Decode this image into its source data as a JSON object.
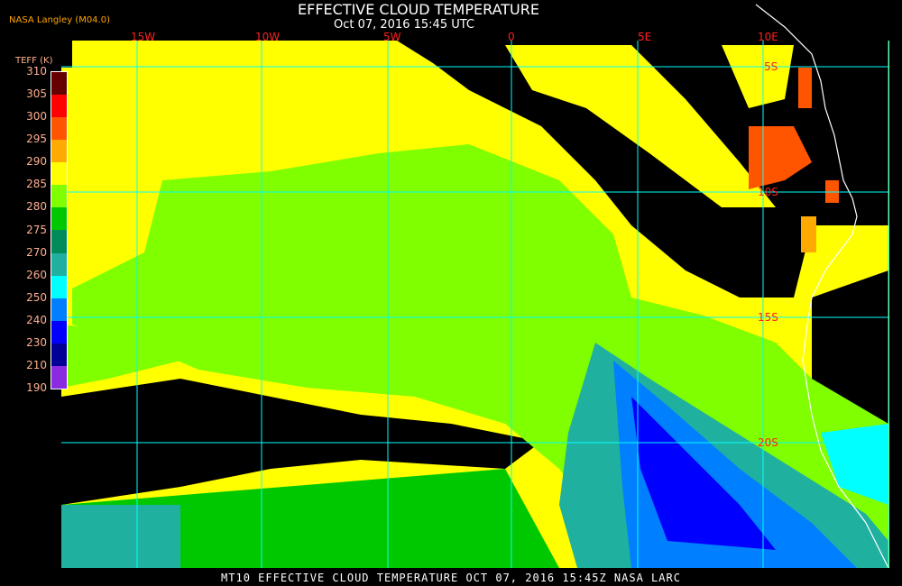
{
  "header": {
    "title": "EFFECTIVE CLOUD TEMPERATURE",
    "subtitle": "Oct 07, 2016 15:45 UTC",
    "credit": "NASA Langley (M04.0)"
  },
  "legend": {
    "title": "TEFF (K)",
    "labels": [
      "310",
      "305",
      "300",
      "295",
      "290",
      "285",
      "280",
      "275",
      "270",
      "260",
      "250",
      "240",
      "230",
      "210",
      "190"
    ],
    "colors": [
      "#660000",
      "#ff0000",
      "#ff5500",
      "#ffaa00",
      "#ffff00",
      "#80ff00",
      "#00c800",
      "#008c5a",
      "#20b0a0",
      "#00ffff",
      "#0080ff",
      "#0000ff",
      "#000096",
      "#8a2be2"
    ]
  },
  "grid": {
    "longitudes": [
      "15W",
      "10W",
      "5W",
      "0",
      "5E",
      "10E"
    ],
    "latitudes": [
      "5S",
      "10S",
      "15S",
      "20S"
    ],
    "line_color": "#00ffff",
    "label_color": "#ff2020"
  },
  "footer": "MT10  EFFECTIVE CLOUD TEMPERATURE  OCT 07, 2016 15:45Z  NASA LARC"
}
